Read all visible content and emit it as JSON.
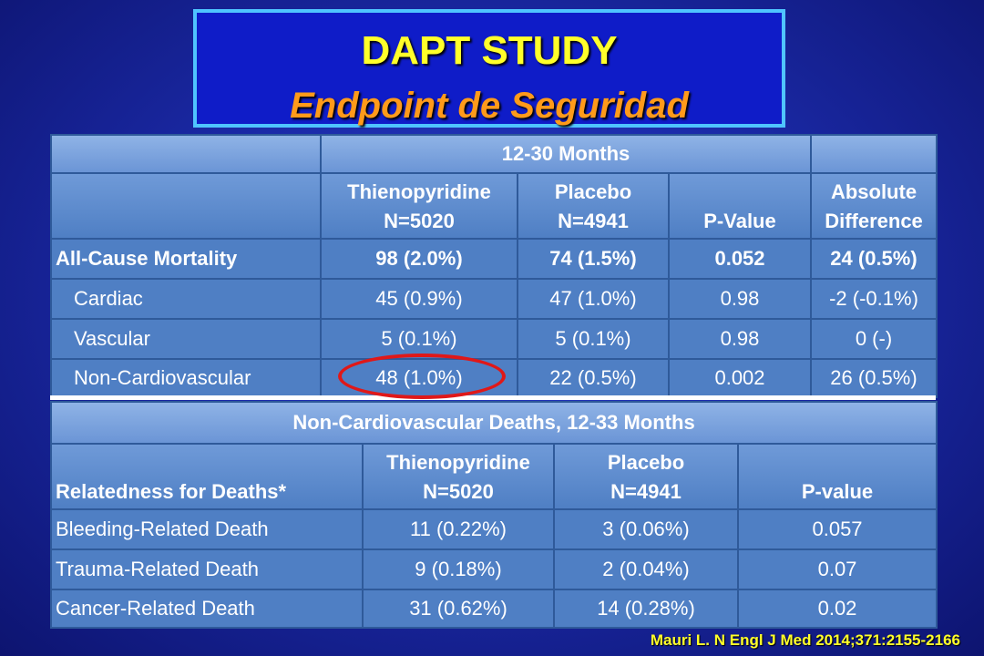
{
  "title": {
    "main": "DAPT STUDY",
    "sub": "Endpoint de Seguridad"
  },
  "table1": {
    "period_header": "12-30 Months",
    "columns": [
      {
        "line1": "Thienopyridine",
        "line2": "N=5020"
      },
      {
        "line1": "Placebo",
        "line2": "N=4941"
      },
      {
        "line1": "",
        "line2": "P-Value"
      },
      {
        "line1": "Absolute",
        "line2": "Difference"
      }
    ],
    "rows": [
      {
        "label": "All-Cause Mortality",
        "values": [
          "98 (2.0%)",
          "74 (1.5%)",
          "0.052",
          "24 (0.5%)"
        ]
      },
      {
        "label": "Cardiac",
        "values": [
          "45 (0.9%)",
          "47 (1.0%)",
          "0.98",
          "-2 (-0.1%)"
        ]
      },
      {
        "label": "Vascular",
        "values": [
          "5 (0.1%)",
          "5 (0.1%)",
          "0.98",
          "0 (-)"
        ]
      },
      {
        "label": "Non-Cardiovascular",
        "values": [
          "48 (1.0%)",
          "22 (0.5%)",
          "0.002",
          "26 (0.5%)"
        ]
      }
    ]
  },
  "table2": {
    "period_header": "Non-Cardiovascular Deaths, 12-33 Months",
    "row_header": "Relatedness for Deaths*",
    "columns": [
      {
        "line1": "Thienopyridine",
        "line2": "N=5020"
      },
      {
        "line1": "Placebo",
        "line2": "N=4941"
      },
      {
        "line1": "",
        "line2": "P-value"
      }
    ],
    "rows": [
      {
        "label": "Bleeding-Related Death",
        "values": [
          "11 (0.22%)",
          "3 (0.06%)",
          "0.057"
        ]
      },
      {
        "label": "Trauma-Related Death",
        "values": [
          "9 (0.18%)",
          "2 (0.04%)",
          "0.07"
        ]
      },
      {
        "label": "Cancer-Related Death",
        "values": [
          "31 (0.62%)",
          "14 (0.28%)",
          "0.02"
        ]
      }
    ]
  },
  "citation": "Mauri  L. N Engl J Med 2014;371:2155-2166",
  "colors": {
    "title_main": "#ffff2a",
    "title_sub": "#ff9a1a",
    "highlight_oval": "#e01818",
    "background": "#1b2aa8"
  }
}
